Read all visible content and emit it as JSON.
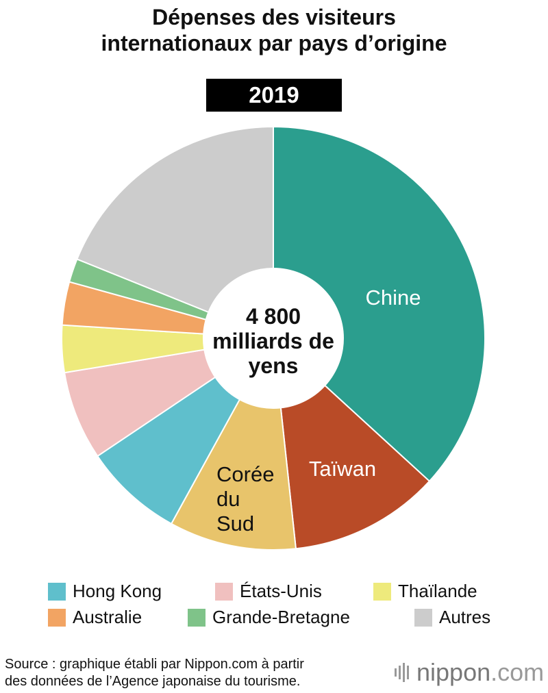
{
  "title_line1": "Dépenses des visiteurs",
  "title_line2": "internationaux par pays d’origine",
  "year": "2019",
  "chart_data": {
    "type": "pie",
    "title": "Dépenses des visiteurs internationaux par pays d’origine",
    "subtitle": "2019",
    "center_label": [
      "4 800",
      "milliards de",
      "yens"
    ],
    "total": 4800,
    "unit": "milliards de yens",
    "slices": [
      {
        "label": "Chine",
        "value": 36.8,
        "color": "#2b9e8e",
        "inline_label": [
          "Chine"
        ],
        "label_color": "#ffffff"
      },
      {
        "label": "Taïwan",
        "value": 11.5,
        "color": "#b94b27",
        "inline_label": [
          "Taïwan"
        ],
        "label_color": "#ffffff"
      },
      {
        "label": "Corée du Sud",
        "value": 9.7,
        "color": "#e8c46b",
        "inline_label": [
          "Corée",
          "du",
          "Sud"
        ],
        "label_color": "#111111"
      },
      {
        "label": "Hong Kong",
        "value": 7.6,
        "color": "#5fbfcc"
      },
      {
        "label": "États-Unis",
        "value": 6.8,
        "color": "#f0c0bf"
      },
      {
        "label": "Thaïlande",
        "value": 3.6,
        "color": "#eeea7c"
      },
      {
        "label": "Australie",
        "value": 3.3,
        "color": "#f2a463"
      },
      {
        "label": "Grande-Bretagne",
        "value": 1.8,
        "color": "#7fc389"
      },
      {
        "label": "Autres",
        "value": 18.9,
        "color": "#cccccc"
      }
    ],
    "legend": [
      {
        "label": "Hong Kong",
        "color": "#5fbfcc"
      },
      {
        "label": "États-Unis",
        "color": "#f0c0bf"
      },
      {
        "label": "Thaïlande",
        "color": "#eeea7c"
      },
      {
        "label": "Australie",
        "color": "#f2a463"
      },
      {
        "label": "Grande-Bretagne",
        "color": "#7fc389"
      },
      {
        "label": "Autres",
        "color": "#cccccc"
      }
    ]
  },
  "source_line1": "Source : graphique établi par Nippon.com à partir",
  "source_line2": "des données de l’Agence japonaise du tourisme.",
  "logo_text": "nippon",
  "logo_suffix": ".com"
}
